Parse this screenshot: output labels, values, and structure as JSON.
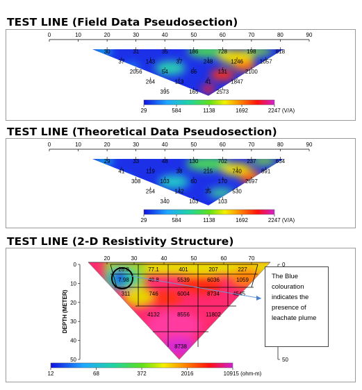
{
  "titles": {
    "field": "TEST LINE (Field Data Pseudosection)",
    "theoretical": "TEST LINE (Theoretical Data Pseudosection)",
    "structure": "TEST LINE (2-D Resistivity Structure)"
  },
  "annotation": "The Blue colouration indicates the presence of leachate plume",
  "colors": {
    "low": "#1a1adc",
    "mid_low": "#19c2e6",
    "mid": "#3cd23c",
    "mid_high": "#f0f000",
    "high_a": "#ff7a00",
    "high_b": "#ff1010",
    "top": "#d020d0",
    "max": "#ff40c0"
  },
  "chart_data": [
    {
      "type": "heatmap",
      "title": "TEST LINE (Field Data Pseudosection)",
      "x_ticks": [
        "0",
        "10",
        "20",
        "30",
        "40",
        "50",
        "60",
        "70",
        "80",
        "90"
      ],
      "xlim": [
        0,
        90
      ],
      "colorbar": {
        "ticks": [
          "29",
          "584",
          "1138",
          "1692",
          "2247 (V/A)"
        ]
      },
      "rows": [
        {
          "values": [
            "30",
            "31",
            "35",
            "186",
            "728",
            "198",
            "818"
          ],
          "x": [
            20,
            30,
            40,
            50,
            60,
            70,
            80
          ]
        },
        {
          "values": [
            "37",
            "143",
            "37",
            "248",
            "1246",
            "1057"
          ],
          "x": [
            25,
            35,
            45,
            55,
            65,
            75
          ]
        },
        {
          "values": [
            "2056",
            "54",
            "66",
            "131",
            "2100"
          ],
          "x": [
            30,
            40,
            50,
            60,
            70
          ]
        },
        {
          "values": [
            "264",
            "113",
            "41",
            "1847"
          ],
          "x": [
            35,
            45,
            55,
            65
          ]
        },
        {
          "values": [
            "395",
            "165",
            "2573"
          ],
          "x": [
            40,
            50,
            60
          ]
        }
      ]
    },
    {
      "type": "heatmap",
      "title": "TEST LINE (Theoretical Data Pseudosection)",
      "x_ticks": [
        "0",
        "10",
        "20",
        "30",
        "40",
        "50",
        "60",
        "70",
        "80",
        "90"
      ],
      "xlim": [
        0,
        90
      ],
      "colorbar": {
        "ticks": [
          "29",
          "584",
          "1138",
          "1692",
          "2247 (V/A)"
        ]
      },
      "rows": [
        {
          "values": [
            "29",
            "33",
            "48",
            "130",
            "702",
            "237",
            "634"
          ],
          "x": [
            20,
            30,
            40,
            50,
            60,
            70,
            80
          ]
        },
        {
          "values": [
            "41",
            "119",
            "38",
            "215",
            "740",
            "891"
          ],
          "x": [
            25,
            35,
            45,
            55,
            65,
            75
          ]
        },
        {
          "values": [
            "308",
            "103",
            "60",
            "170",
            "2697"
          ],
          "x": [
            30,
            40,
            50,
            60,
            70
          ]
        },
        {
          "values": [
            "254",
            "142",
            "35",
            "530"
          ],
          "x": [
            35,
            45,
            55,
            65
          ]
        },
        {
          "values": [
            "340",
            "103",
            "103"
          ],
          "x": [
            40,
            50,
            60
          ]
        }
      ]
    },
    {
      "type": "heatmap",
      "title": "TEST LINE (2-D Resistivity Structure)",
      "x_ticks": [
        "20",
        "30",
        "40",
        "50",
        "60",
        "70"
      ],
      "xlim": [
        20,
        70
      ],
      "ylabel": "DEPTH (METER)",
      "y_ticks": [
        "0",
        "10",
        "20",
        "30",
        "40",
        "50"
      ],
      "ylim": [
        0,
        50
      ],
      "colorbar": {
        "ticks": [
          "12",
          "68",
          "372",
          "2016",
          "10915 (ohm-m)"
        ]
      },
      "cells": [
        [
          "26.8",
          "77.1",
          "401",
          "207",
          "227"
        ],
        [
          "7.98",
          "48.8",
          "5539",
          "6036",
          "1059"
        ],
        [
          "311",
          "746",
          "6004",
          "8734",
          "4545"
        ],
        [
          "4132",
          "8556",
          "11802"
        ],
        [
          "8738"
        ]
      ]
    }
  ]
}
